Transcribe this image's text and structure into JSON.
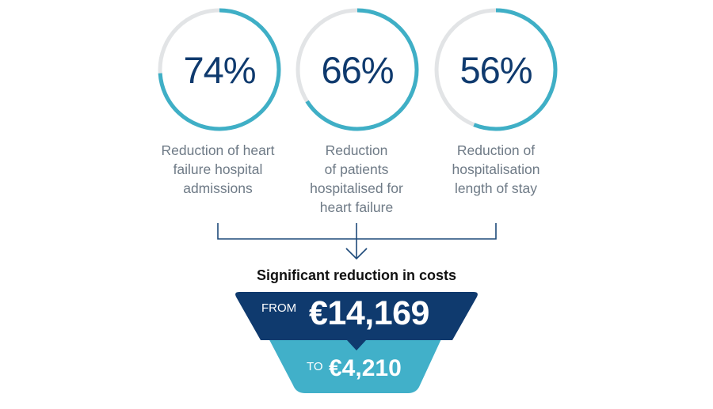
{
  "colors": {
    "ring_fill": "#3fafc6",
    "ring_track": "#e2e4e6",
    "percent_text": "#0f3a6e",
    "caption_text": "#6e7a86",
    "connector": "#1e4a7a",
    "funnel_top": "#0f3a6e",
    "funnel_bottom": "#41b0c9"
  },
  "stats": [
    {
      "value": 74,
      "label": "74%",
      "caption": "Reduction of heart\nfailure hospital\nadmissions"
    },
    {
      "value": 66,
      "label": "66%",
      "caption": "Reduction\nof patients\nhospitalised for\nheart failure"
    },
    {
      "value": 56,
      "label": "56%",
      "caption": "Reduction of\nhospitalisation\nlength of stay"
    }
  ],
  "headline": "Significant reduction in costs",
  "cost": {
    "from_label": "FROM",
    "from_value": "€14,169",
    "to_label": "TO",
    "to_value": "€4,210"
  }
}
